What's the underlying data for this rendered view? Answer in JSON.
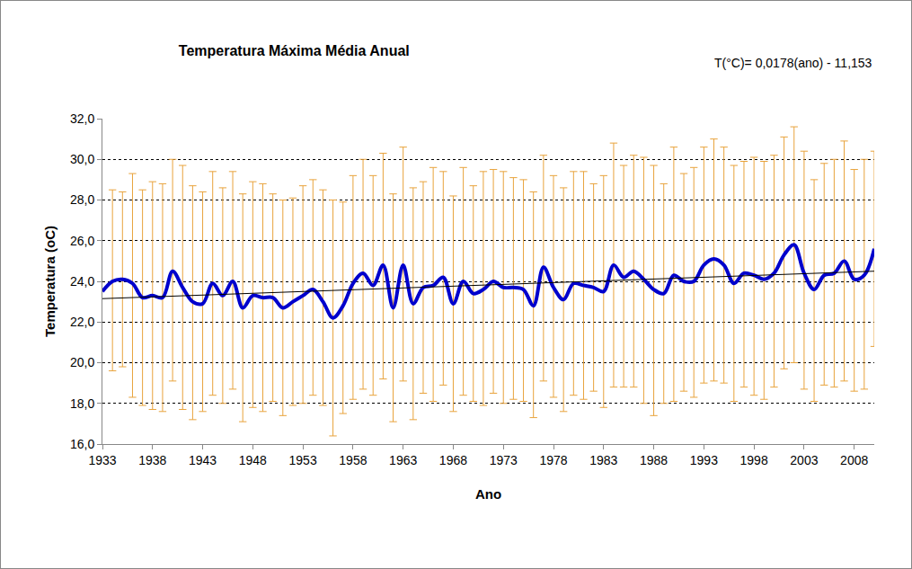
{
  "chart_data": {
    "type": "line",
    "title": "Temperatura Máxima Média Anual",
    "annotation": "T(°C)= 0,0178(ano) - 11,153",
    "x_label": "Ano",
    "y_label": "Temperatura (oC)",
    "x": [
      1933,
      1934,
      1935,
      1936,
      1937,
      1938,
      1939,
      1940,
      1941,
      1942,
      1943,
      1944,
      1945,
      1946,
      1947,
      1948,
      1949,
      1950,
      1951,
      1952,
      1953,
      1954,
      1955,
      1956,
      1957,
      1958,
      1959,
      1960,
      1961,
      1962,
      1963,
      1964,
      1965,
      1966,
      1967,
      1968,
      1969,
      1970,
      1971,
      1972,
      1973,
      1974,
      1975,
      1976,
      1977,
      1978,
      1979,
      1980,
      1981,
      1982,
      1983,
      1984,
      1985,
      1986,
      1987,
      1988,
      1989,
      1990,
      1991,
      1992,
      1993,
      1994,
      1995,
      1996,
      1997,
      1998,
      1999,
      2000,
      2001,
      2002,
      2003,
      2004,
      2005,
      2006,
      2007,
      2008,
      2009,
      2010
    ],
    "series": [
      {
        "color": "#0000cc",
        "line_style": "spline",
        "values": [
          23.5,
          24.0,
          24.1,
          23.9,
          23.2,
          23.3,
          23.2,
          24.5,
          23.7,
          23.0,
          22.9,
          23.9,
          23.3,
          24.0,
          22.7,
          23.3,
          23.2,
          23.2,
          22.7,
          23.0,
          23.3,
          23.6,
          23.0,
          22.2,
          22.8,
          23.9,
          24.4,
          23.8,
          24.8,
          22.7,
          24.8,
          22.9,
          23.7,
          23.8,
          24.2,
          22.9,
          24.0,
          23.4,
          23.6,
          24.0,
          23.7,
          23.7,
          23.6,
          22.8,
          24.7,
          23.7,
          23.1,
          23.9,
          23.8,
          23.7,
          23.5,
          24.8,
          24.2,
          24.5,
          24.1,
          23.6,
          23.4,
          24.3,
          24.0,
          24.0,
          24.8,
          25.1,
          24.8,
          23.9,
          24.4,
          24.3,
          24.1,
          24.4,
          25.3,
          25.8,
          24.4,
          23.6,
          24.3,
          24.4,
          25.0,
          24.1,
          24.3,
          25.6
        ],
        "error_bars": {
          "color": "#e8a33c",
          "upper": [
            null,
            28.5,
            28.4,
            29.3,
            28.5,
            28.9,
            28.8,
            30.0,
            29.7,
            28.7,
            28.4,
            29.4,
            28.6,
            29.4,
            28.3,
            28.9,
            28.8,
            28.3,
            28.0,
            28.1,
            28.7,
            29.0,
            28.5,
            28.0,
            27.9,
            29.2,
            30.0,
            29.2,
            30.3,
            28.3,
            30.6,
            28.6,
            28.9,
            29.6,
            29.4,
            28.2,
            29.6,
            28.7,
            29.4,
            29.5,
            29.4,
            29.1,
            29.0,
            28.4,
            30.2,
            29.2,
            28.6,
            29.4,
            29.4,
            28.8,
            29.2,
            30.8,
            29.7,
            30.2,
            30.1,
            29.7,
            28.8,
            30.6,
            29.3,
            29.6,
            30.6,
            31.0,
            30.6,
            29.7,
            29.9,
            30.1,
            29.9,
            30.2,
            31.1,
            31.6,
            30.4,
            29.0,
            29.8,
            30.0,
            30.9,
            29.5,
            30.0,
            30.4
          ],
          "lower": [
            null,
            19.6,
            19.8,
            18.3,
            17.9,
            17.7,
            17.6,
            19.1,
            17.7,
            17.2,
            17.6,
            18.4,
            18.0,
            18.7,
            17.1,
            17.8,
            17.6,
            18.1,
            17.4,
            17.9,
            18.0,
            18.4,
            17.9,
            16.4,
            17.5,
            18.2,
            18.7,
            18.4,
            19.2,
            17.1,
            19.1,
            17.2,
            18.5,
            18.1,
            18.9,
            17.6,
            18.4,
            18.1,
            17.9,
            18.5,
            18.0,
            18.2,
            18.1,
            17.3,
            19.1,
            18.3,
            17.6,
            18.4,
            18.2,
            18.6,
            17.8,
            18.8,
            18.8,
            18.8,
            18.0,
            17.4,
            18.0,
            18.1,
            18.6,
            18.3,
            19.0,
            19.1,
            19.0,
            18.1,
            18.8,
            18.4,
            18.2,
            18.8,
            19.7,
            20.0,
            18.7,
            18.1,
            18.9,
            18.8,
            19.1,
            18.6,
            18.7,
            20.8
          ]
        }
      },
      {
        "color": "#000000",
        "line_style": "solid",
        "x": [
          1933,
          2010
        ],
        "values": [
          23.15,
          24.5
        ]
      }
    ],
    "xlim": [
      1933,
      2010
    ],
    "xticks": [
      1933,
      1938,
      1943,
      1948,
      1953,
      1958,
      1963,
      1968,
      1973,
      1978,
      1983,
      1988,
      1993,
      1998,
      2003,
      2008
    ],
    "ylim": [
      16,
      32
    ],
    "yticks": [
      {
        "value": 16,
        "label": "16,0"
      },
      {
        "value": 18,
        "label": "18,0"
      },
      {
        "value": 20,
        "label": "20,0"
      },
      {
        "value": 22,
        "label": "22,0"
      },
      {
        "value": 24,
        "label": "24,0"
      },
      {
        "value": 26,
        "label": "26,0"
      },
      {
        "value": 28,
        "label": "28,0"
      },
      {
        "value": 30,
        "label": "30,0"
      },
      {
        "value": 32,
        "label": "32,0"
      }
    ],
    "grid": true
  }
}
